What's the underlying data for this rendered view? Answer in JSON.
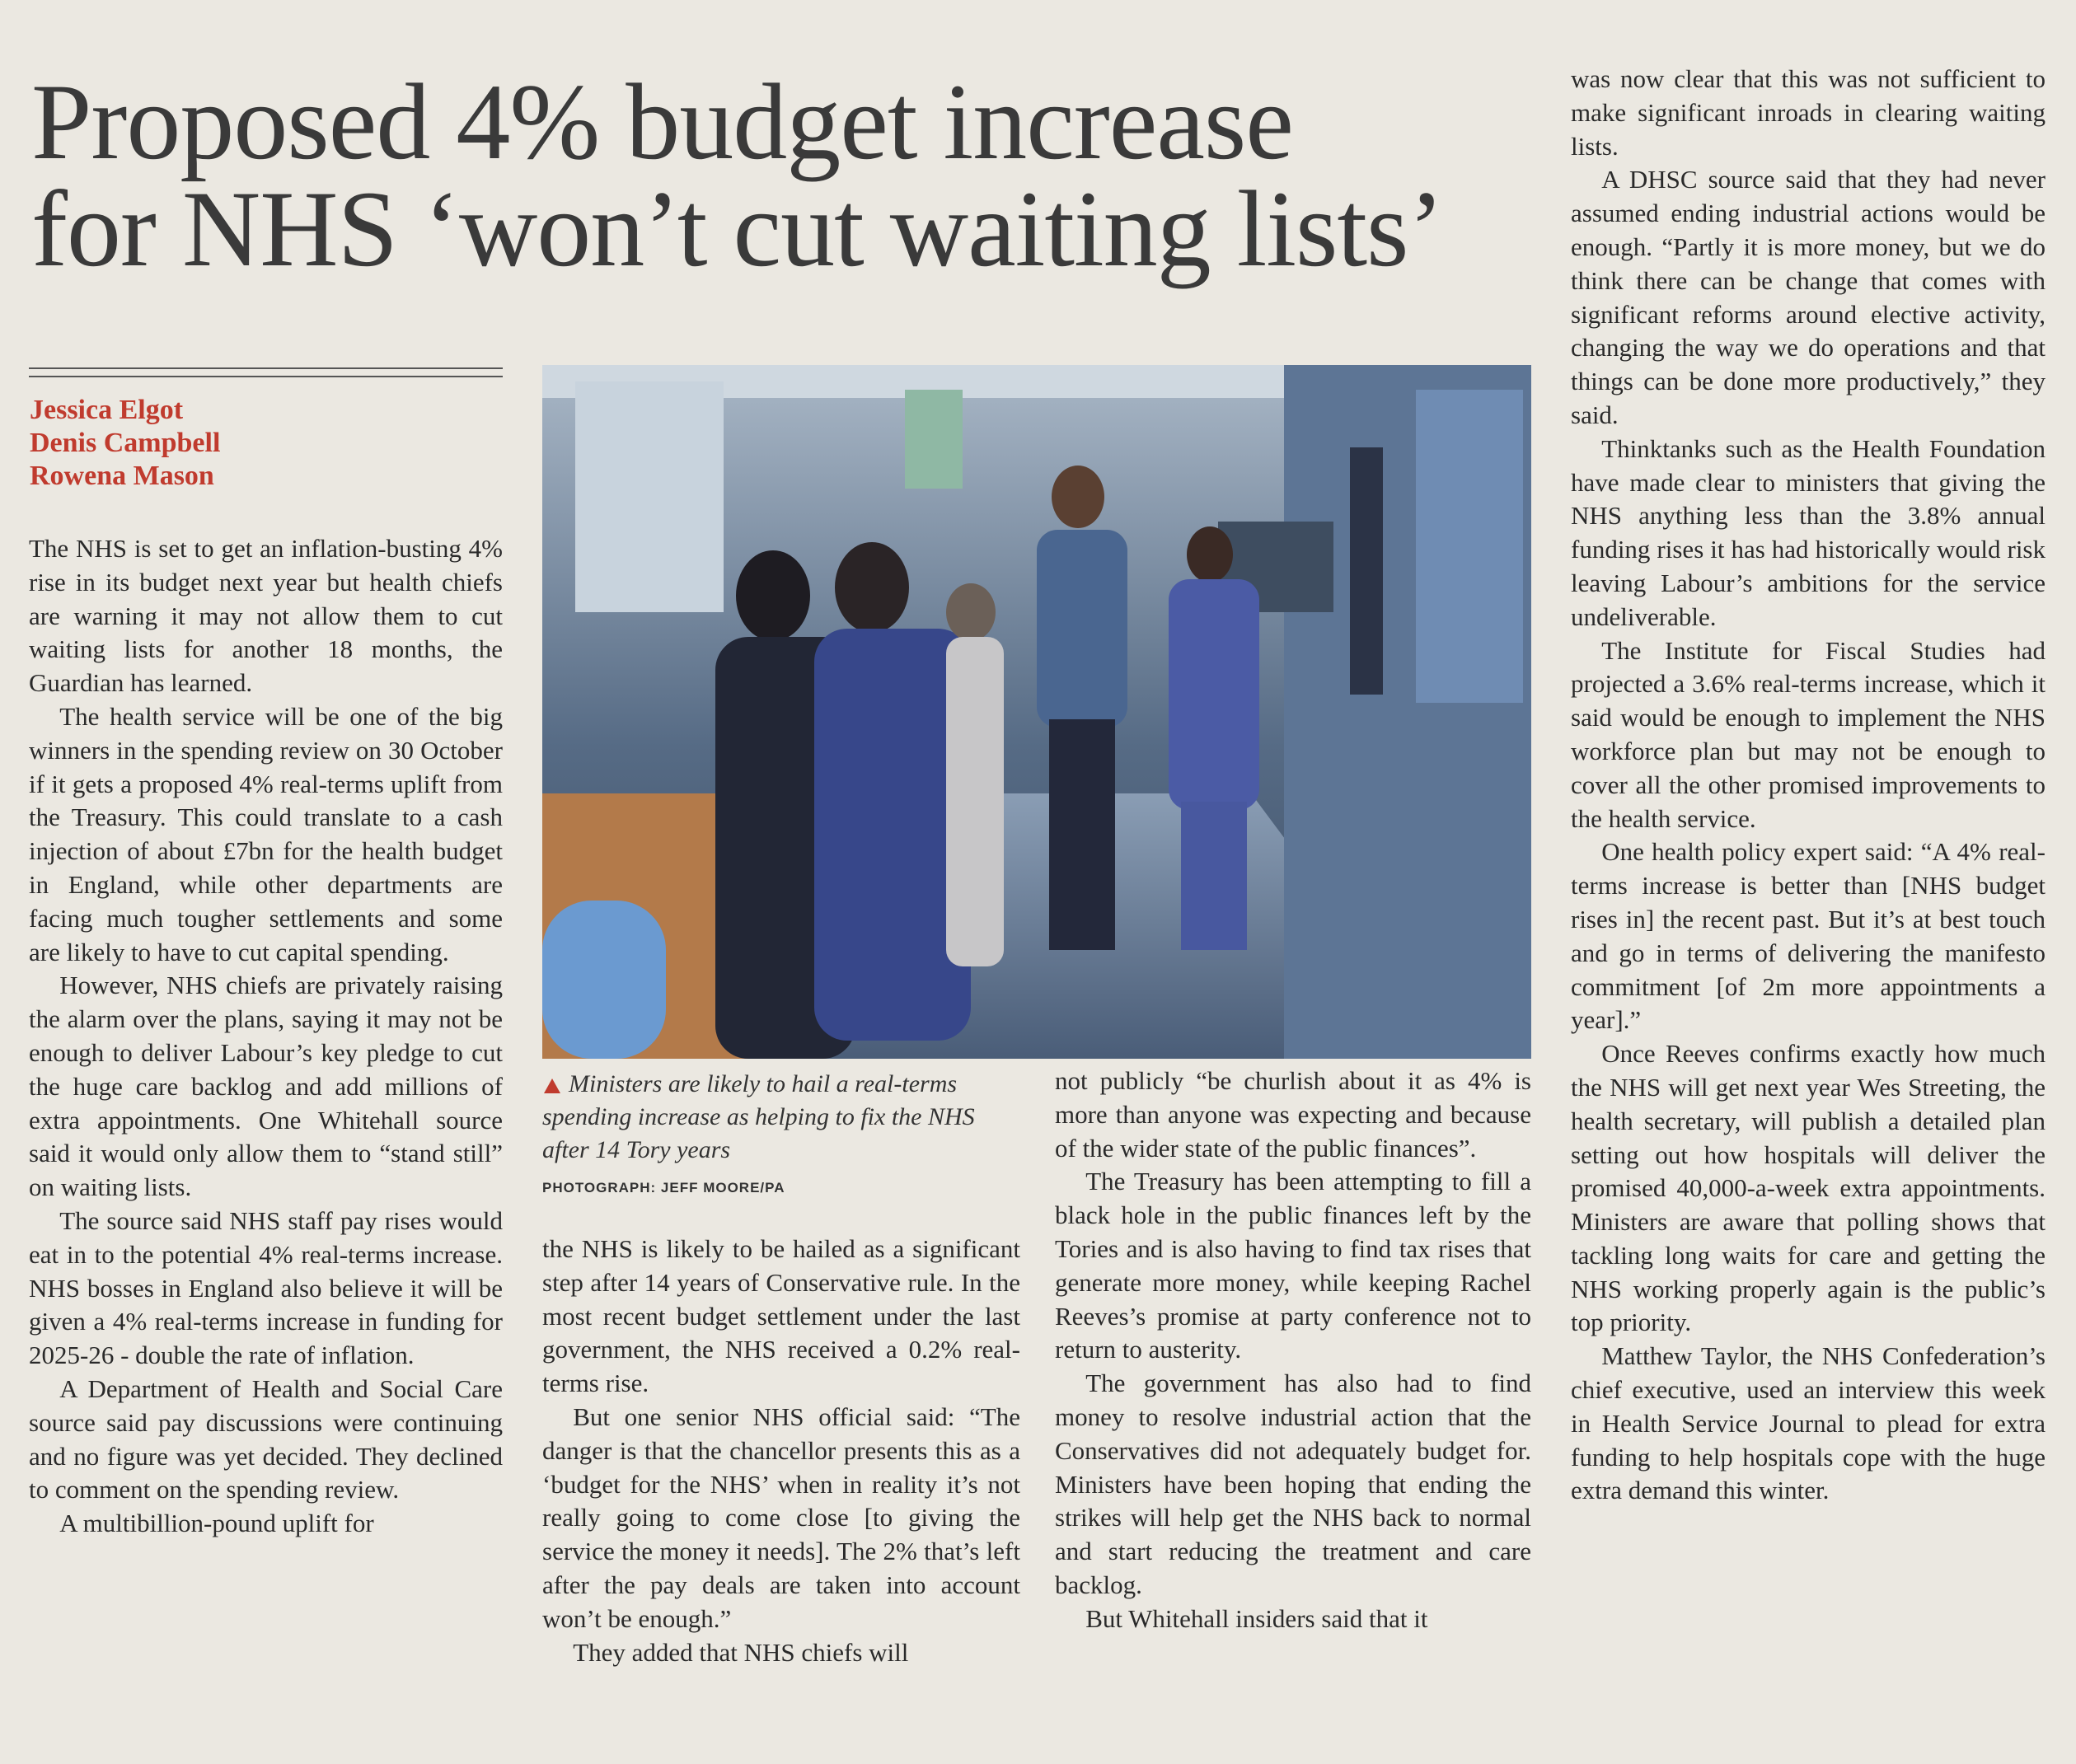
{
  "header": {
    "headline": [
      "Proposed 4% budget increase",
      "for NHS ‘won’t cut waiting lists’"
    ]
  },
  "bylines": [
    "Jessica Elgot",
    "Denis Campbell",
    "Rowena Mason"
  ],
  "photo": {
    "caption": "Ministers are likely to hail a real-terms spending increase as helping to fix the NHS after 14 Tory years",
    "credit": "PHOTOGRAPH: JEFF MOORE/PA"
  },
  "columns": [
    [
      "The NHS is set to get an inflation-busting 4% rise in its budget next year but health chiefs are warning it may not allow them to cut waiting lists for another 18 months, the Guardian has learned.",
      "The health service will be one of the big winners in the spending review on 30 October if it gets a proposed 4% real-terms uplift from the Treasury. This could translate to a cash injection of about £7bn for the health budget in England, while other departments are facing much tougher settlements and some are likely to have to cut capital spending.",
      "However, NHS chiefs are privately raising the alarm over the plans, saying it may not be enough to deliver Labour’s key pledge to cut the huge care backlog and add millions of extra appointments. One Whitehall source said it would only allow them to “stand still” on waiting lists.",
      "The source said NHS staff pay rises would eat in to the potential 4% real-terms increase. NHS bosses in England also believe it will be given a 4% real-terms increase in funding for 2025-26 - double the rate of inflation.",
      "A Department of Health and Social Care source said pay discussions were continuing and no figure was yet decided. They declined to comment on the spending review.",
      "A multibillion-pound uplift for"
    ],
    [
      "the NHS is likely to be hailed as a significant step after 14 years of Conservative rule. In the most recent budget settlement under the last government, the NHS received a 0.2% real-terms rise.",
      "But one senior NHS official said: “The danger is that the chancellor presents this as a ‘budget for the NHS’ when in reality it’s not really going to come close [to giving the service the money it needs]. The 2% that’s left after the pay deals are taken into account won’t be enough.”",
      "They added that NHS chiefs will"
    ],
    [
      "not publicly “be churlish about it as 4% is more than anyone was expecting and because of the wider state of the public finances”.",
      "The Treasury has been attempting to fill a black hole in the public finances left by the Tories and is also having to find tax rises that generate more money, while keeping Rachel Reeves’s promise at party conference not to return to austerity.",
      "The government has also had to find money to resolve industrial action that the Conservatives did not adequately budget for. Ministers have been hoping that ending the strikes will help get the NHS back to normal and start reducing the treatment and care backlog.",
      "But Whitehall insiders said that it"
    ],
    [
      "was now clear that this was not sufficient to make significant inroads in clearing waiting lists.",
      "A DHSC source said that they had never assumed ending industrial actions would be enough. “Partly it is more money, but we do think there can be change that comes with significant reforms around elective activity, changing the way we do operations and that things can be done more productively,” they said.",
      "Thinktanks such as the Health Foundation have made clear to ministers that giving the NHS anything less than the 3.8% annual funding rises it has had historically would risk leaving Labour’s ambitions for the service undeliverable.",
      "The Institute for Fiscal Studies had projected a 3.6% real-terms increase, which it said would be enough to implement the NHS workforce plan but may not be enough to cover all the other promised improvements to the health service.",
      "One health policy expert said: “A 4% real-terms increase is better than [NHS budget rises in] the recent past. But it’s at best touch and go in terms of delivering the manifesto commitment [of 2m more appointments a year].”",
      "Once Reeves confirms exactly how much the NHS will get next year Wes Streeting, the health secretary, will publish a detailed plan setting out how hospitals will deliver the promised 40,000-a-week extra appointments. Ministers are aware that polling shows that tackling long waits for care and getting the NHS working properly again is the public’s top priority.",
      "Matthew Taylor, the NHS Confederation’s chief executive, used an interview this week in Health Service Journal to plead for extra funding to help hospitals cope with the huge extra demand this winter."
    ]
  ]
}
